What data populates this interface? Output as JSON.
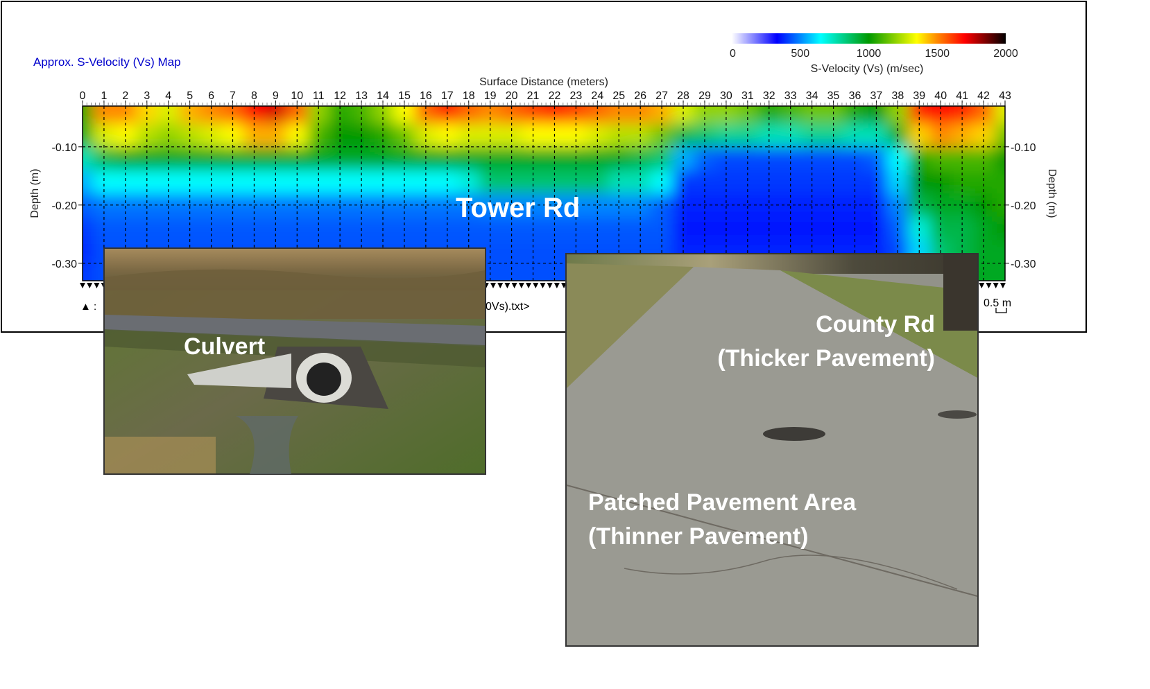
{
  "chart_data": {
    "type": "heatmap",
    "title": "Approx. S-Velocity (Vs) Map",
    "xlabel": "Surface Distance (meters)",
    "ylabel": "Depth (m)",
    "xlim": [
      0,
      43
    ],
    "ylim": [
      -0.33,
      -0.03
    ],
    "x_ticks": [
      0,
      1,
      2,
      3,
      4,
      5,
      6,
      7,
      8,
      9,
      10,
      11,
      12,
      13,
      14,
      15,
      16,
      17,
      18,
      19,
      20,
      21,
      22,
      23,
      24,
      25,
      26,
      27,
      28,
      29,
      30,
      31,
      32,
      33,
      34,
      35,
      36,
      37,
      38,
      39,
      40,
      41,
      42,
      43
    ],
    "y_ticks": [
      "-0.10",
      "-0.20",
      "-0.30"
    ],
    "grid": true,
    "colorbar": {
      "label": "S-Velocity (Vs) (m/sec)",
      "ticks": [
        "0",
        "500",
        "1000",
        "1500",
        "2000"
      ],
      "range": [
        0,
        2000
      ],
      "placement": "top-right",
      "stops": [
        {
          "v": 0,
          "color": "#ffffff"
        },
        {
          "v": 330,
          "color": "#0000ff"
        },
        {
          "v": 650,
          "color": "#00ffff"
        },
        {
          "v": 1000,
          "color": "#009900"
        },
        {
          "v": 1350,
          "color": "#ffff00"
        },
        {
          "v": 1500,
          "color": "#ff8800"
        },
        {
          "v": 1700,
          "color": "#ff0000"
        },
        {
          "v": 2000,
          "color": "#000000"
        }
      ]
    },
    "depths": [
      -0.04,
      -0.08,
      -0.12,
      -0.16,
      -0.2,
      -0.24,
      -0.28,
      -0.32
    ],
    "x": [
      0,
      1,
      2,
      3,
      4,
      5,
      6,
      7,
      8,
      9,
      10,
      11,
      12,
      13,
      14,
      15,
      16,
      17,
      18,
      19,
      20,
      21,
      22,
      23,
      24,
      25,
      26,
      27,
      28,
      29,
      30,
      31,
      32,
      33,
      34,
      35,
      36,
      37,
      38,
      39,
      40,
      41,
      42,
      43
    ],
    "values": [
      [
        1050,
        1500,
        1500,
        1400,
        1300,
        1450,
        1500,
        1550,
        1700,
        1750,
        1550,
        1200,
        1050,
        1100,
        1200,
        1350,
        1550,
        1650,
        1550,
        1500,
        1550,
        1600,
        1650,
        1600,
        1550,
        1500,
        1500,
        1450,
        1300,
        1200,
        1200,
        1150,
        1050,
        1100,
        1150,
        1150,
        1050,
        1000,
        1200,
        1650,
        1700,
        1650,
        1550,
        1300
      ],
      [
        950,
        1300,
        1350,
        1250,
        1200,
        1250,
        1300,
        1350,
        1450,
        1450,
        1350,
        1100,
        1000,
        1000,
        1050,
        1150,
        1300,
        1350,
        1300,
        1300,
        1300,
        1350,
        1350,
        1350,
        1300,
        1250,
        1250,
        1150,
        900,
        850,
        800,
        800,
        750,
        750,
        800,
        800,
        750,
        750,
        950,
        1400,
        1500,
        1450,
        1400,
        1150
      ],
      [
        750,
        900,
        950,
        950,
        950,
        950,
        950,
        950,
        950,
        950,
        950,
        950,
        950,
        950,
        950,
        950,
        950,
        950,
        950,
        950,
        950,
        950,
        950,
        950,
        950,
        950,
        900,
        850,
        550,
        450,
        420,
        420,
        420,
        420,
        420,
        420,
        420,
        450,
        650,
        1050,
        1100,
        1100,
        1100,
        1000
      ],
      [
        550,
        650,
        650,
        650,
        650,
        650,
        650,
        650,
        650,
        650,
        650,
        650,
        650,
        650,
        650,
        650,
        650,
        650,
        700,
        850,
        850,
        850,
        850,
        850,
        850,
        750,
        750,
        650,
        400,
        400,
        400,
        400,
        400,
        400,
        400,
        400,
        400,
        400,
        600,
        1000,
        1000,
        1050,
        1050,
        1050
      ],
      [
        450,
        480,
        480,
        480,
        480,
        480,
        480,
        480,
        480,
        480,
        480,
        480,
        480,
        480,
        480,
        480,
        480,
        480,
        480,
        500,
        500,
        500,
        500,
        500,
        500,
        500,
        500,
        450,
        370,
        370,
        370,
        370,
        370,
        370,
        370,
        370,
        370,
        370,
        500,
        900,
        950,
        950,
        1000,
        1050
      ],
      [
        400,
        440,
        440,
        440,
        440,
        440,
        440,
        440,
        440,
        440,
        440,
        440,
        440,
        440,
        440,
        440,
        440,
        440,
        440,
        440,
        440,
        440,
        440,
        440,
        440,
        440,
        440,
        440,
        360,
        360,
        360,
        360,
        360,
        360,
        360,
        360,
        360,
        360,
        450,
        700,
        900,
        900,
        950,
        1000
      ],
      [
        380,
        430,
        430,
        430,
        430,
        430,
        430,
        430,
        430,
        430,
        430,
        430,
        430,
        430,
        430,
        430,
        430,
        430,
        430,
        430,
        430,
        430,
        430,
        430,
        430,
        430,
        430,
        430,
        370,
        370,
        370,
        370,
        370,
        370,
        370,
        370,
        370,
        370,
        420,
        600,
        850,
        900,
        950,
        950
      ],
      [
        400,
        430,
        430,
        430,
        430,
        430,
        430,
        430,
        430,
        430,
        430,
        430,
        430,
        430,
        430,
        430,
        430,
        430,
        430,
        430,
        430,
        430,
        430,
        430,
        430,
        430,
        430,
        430,
        370,
        370,
        370,
        370,
        370,
        370,
        370,
        370,
        370,
        370,
        450,
        650,
        900,
        950,
        950,
        950
      ]
    ],
    "annotations": [
      "Tower Rd"
    ]
  },
  "legend_footer": {
    "marker_symbol": "▲ :",
    "file_fragment": "0Vs).txt>",
    "scale_label": "0.5 m"
  },
  "photos": {
    "culvert": {
      "label": "Culvert"
    },
    "road": {
      "label_line1": "County Rd",
      "label_line2": "(Thicker Pavement)",
      "label_line3": "Patched Pavement Area",
      "label_line4": "(Thinner Pavement)"
    }
  },
  "colors": {
    "title": "#0000cc",
    "frame": "#000000",
    "overlay_text": "#ffffff"
  }
}
